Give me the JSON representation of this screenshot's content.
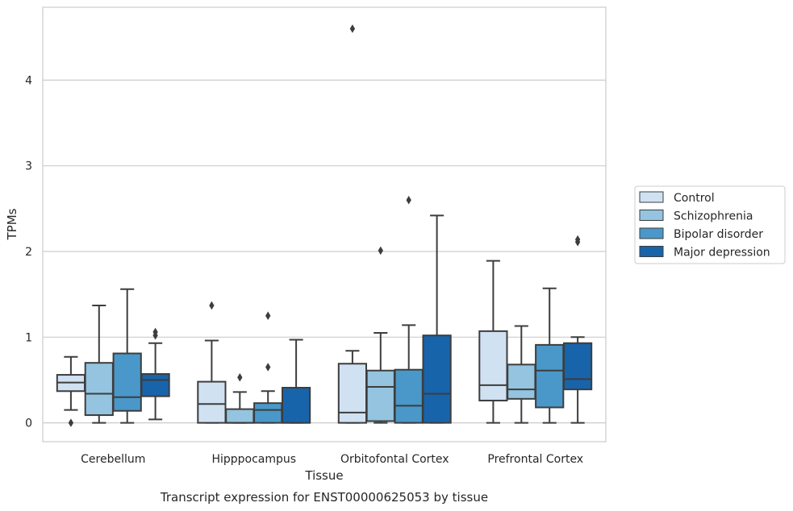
{
  "chart_data": {
    "type": "boxplot",
    "title": "",
    "caption": "Transcript expression for ENST00000625053 by tissue",
    "xlabel": "Tissue",
    "ylabel": "TPMs",
    "ylim": [
      -0.22,
      4.85
    ],
    "yticks": [
      0,
      1,
      2,
      3,
      4
    ],
    "grid": "horizontal",
    "legend_position": "right",
    "categories": [
      "Cerebellum",
      "Hipppocampus",
      "Orbitofontal Cortex",
      "Prefrontal Cortex"
    ],
    "series": [
      {
        "name": "Control",
        "color": "#d0e1f2",
        "boxes": [
          {
            "whislo": 0.15,
            "q1": 0.37,
            "med": 0.47,
            "q3": 0.56,
            "whishi": 0.77,
            "fliers": [
              0.0
            ]
          },
          {
            "whislo": 0.0,
            "q1": 0.0,
            "med": 0.22,
            "q3": 0.48,
            "whishi": 0.96,
            "fliers": [
              1.37
            ]
          },
          {
            "whislo": 0.0,
            "q1": 0.0,
            "med": 0.12,
            "q3": 0.69,
            "whishi": 0.84,
            "fliers": [
              4.6
            ]
          },
          {
            "whislo": 0.0,
            "q1": 0.26,
            "med": 0.44,
            "q3": 1.07,
            "whishi": 1.89,
            "fliers": []
          }
        ]
      },
      {
        "name": "Schizophrenia",
        "color": "#94c4df",
        "boxes": [
          {
            "whislo": 0.0,
            "q1": 0.09,
            "med": 0.34,
            "q3": 0.7,
            "whishi": 1.37,
            "fliers": []
          },
          {
            "whislo": 0.0,
            "q1": 0.0,
            "med": 0.0,
            "q3": 0.16,
            "whishi": 0.36,
            "fliers": [
              0.53
            ]
          },
          {
            "whislo": 0.0,
            "q1": 0.02,
            "med": 0.42,
            "q3": 0.61,
            "whishi": 1.05,
            "fliers": [
              2.01
            ]
          },
          {
            "whislo": 0.0,
            "q1": 0.28,
            "med": 0.39,
            "q3": 0.68,
            "whishi": 1.13,
            "fliers": []
          }
        ]
      },
      {
        "name": "Bipolar disorder",
        "color": "#4a98c9",
        "boxes": [
          {
            "whislo": 0.0,
            "q1": 0.14,
            "med": 0.3,
            "q3": 0.81,
            "whishi": 1.56,
            "fliers": []
          },
          {
            "whislo": 0.0,
            "q1": 0.0,
            "med": 0.15,
            "q3": 0.23,
            "whishi": 0.37,
            "fliers": [
              0.65,
              1.25
            ]
          },
          {
            "whislo": 0.0,
            "q1": 0.0,
            "med": 0.2,
            "q3": 0.62,
            "whishi": 1.14,
            "fliers": [
              2.6
            ]
          },
          {
            "whislo": 0.0,
            "q1": 0.18,
            "med": 0.61,
            "q3": 0.91,
            "whishi": 1.57,
            "fliers": []
          }
        ]
      },
      {
        "name": "Major depression",
        "color": "#1764ab",
        "boxes": [
          {
            "whislo": 0.04,
            "q1": 0.31,
            "med": 0.5,
            "q3": 0.57,
            "whishi": 0.93,
            "fliers": [
              1.02,
              1.06
            ]
          },
          {
            "whislo": 0.0,
            "q1": 0.0,
            "med": 0.0,
            "q3": 0.41,
            "whishi": 0.97,
            "fliers": []
          },
          {
            "whislo": 0.0,
            "q1": 0.0,
            "med": 0.34,
            "q3": 1.02,
            "whishi": 2.42,
            "fliers": []
          },
          {
            "whislo": 0.0,
            "q1": 0.39,
            "med": 0.51,
            "q3": 0.93,
            "whishi": 1.0,
            "fliers": [
              2.11,
              2.14
            ]
          }
        ]
      }
    ]
  }
}
